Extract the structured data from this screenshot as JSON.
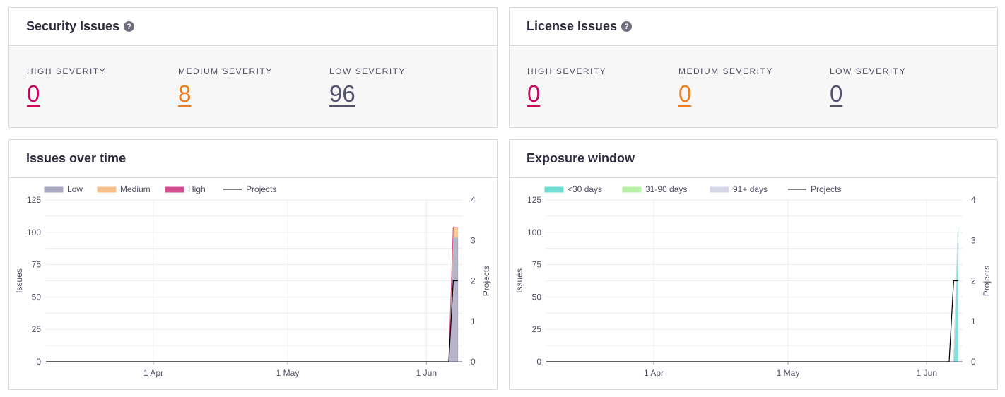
{
  "security": {
    "title": "Security Issues",
    "help": "?",
    "stats": [
      {
        "label": "HIGH SEVERITY",
        "value": "0",
        "color": "#c7085f"
      },
      {
        "label": "MEDIUM SEVERITY",
        "value": "8",
        "color": "#ee7e23"
      },
      {
        "label": "LOW SEVERITY",
        "value": "96",
        "color": "#555470"
      }
    ]
  },
  "license": {
    "title": "License Issues",
    "help": "?",
    "stats": [
      {
        "label": "HIGH SEVERITY",
        "value": "0",
        "color": "#c7085f"
      },
      {
        "label": "MEDIUM SEVERITY",
        "value": "0",
        "color": "#ee7e23"
      },
      {
        "label": "LOW SEVERITY",
        "value": "0",
        "color": "#555470"
      }
    ]
  },
  "issues_chart": {
    "title": "Issues over time"
  },
  "exposure_chart": {
    "title": "Exposure window"
  },
  "chart_data": [
    {
      "type": "area",
      "title": "Issues over time",
      "ylabel": "Issues",
      "y2label": "Projects",
      "ylim": [
        0,
        125
      ],
      "y2lim": [
        0,
        4
      ],
      "yticks": [
        0,
        25,
        50,
        75,
        100,
        125
      ],
      "y2ticks": [
        0,
        1,
        2,
        3,
        4
      ],
      "xlim": [
        "2024-03-08",
        "2024-06-09"
      ],
      "xticks": [
        {
          "date": "2024-04-01",
          "label": "1 Apr"
        },
        {
          "date": "2024-05-01",
          "label": "1 May"
        },
        {
          "date": "2024-06-01",
          "label": "1 Jun"
        }
      ],
      "grid": true,
      "legend_position": "top-left",
      "x": [
        "2024-06-06",
        "2024-06-07",
        "2024-06-08"
      ],
      "series": [
        {
          "name": "Low",
          "kind": "area",
          "color": "#a9a8c0",
          "values": [
            0,
            96,
            96
          ]
        },
        {
          "name": "Medium",
          "kind": "area",
          "color": "#f9c189",
          "values": [
            0,
            8,
            8
          ]
        },
        {
          "name": "High",
          "kind": "area",
          "color": "#d64d91",
          "values": [
            0,
            0,
            0
          ]
        },
        {
          "name": "Projects",
          "kind": "line",
          "axis": "right",
          "color": "#000000",
          "values": [
            0,
            2,
            2
          ]
        }
      ]
    },
    {
      "type": "area",
      "title": "Exposure window",
      "ylabel": "Issues",
      "y2label": "Projects",
      "ylim": [
        0,
        125
      ],
      "y2lim": [
        0,
        4
      ],
      "yticks": [
        0,
        25,
        50,
        75,
        100,
        125
      ],
      "y2ticks": [
        0,
        1,
        2,
        3,
        4
      ],
      "xlim": [
        "2024-03-08",
        "2024-06-09"
      ],
      "xticks": [
        {
          "date": "2024-04-01",
          "label": "1 Apr"
        },
        {
          "date": "2024-05-01",
          "label": "1 May"
        },
        {
          "date": "2024-06-01",
          "label": "1 Jun"
        }
      ],
      "grid": true,
      "legend_position": "top-left",
      "x": [
        "2024-06-06",
        "2024-06-07",
        "2024-06-08"
      ],
      "series": [
        {
          "name": "<30 days",
          "kind": "area",
          "color": "#6fdcd2",
          "values": [
            0,
            0,
            104
          ]
        },
        {
          "name": "31-90 days",
          "kind": "area",
          "color": "#b8f0a8",
          "values": [
            0,
            0,
            0
          ]
        },
        {
          "name": "91+ days",
          "kind": "area",
          "color": "#d8d7ea",
          "values": [
            0,
            0,
            0
          ]
        },
        {
          "name": "Projects",
          "kind": "line",
          "axis": "right",
          "color": "#000000",
          "values": [
            0,
            2,
            2
          ]
        }
      ]
    }
  ]
}
